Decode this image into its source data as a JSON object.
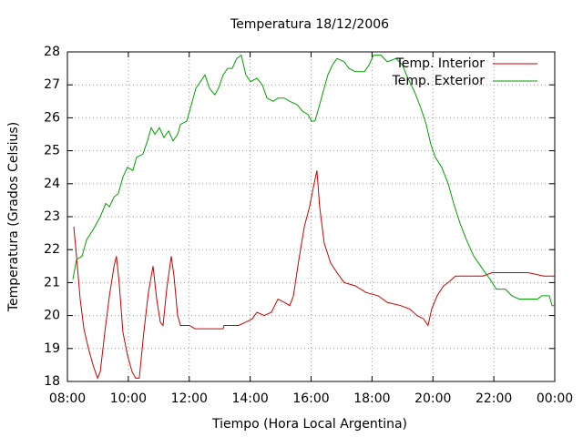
{
  "chart_data": {
    "type": "line",
    "title": "Temperatura 18/12/2006",
    "x_label": "Tiempo (Hora Local Argentina)",
    "y_label": "Temperatura (Grados Celsius)",
    "xlim": [
      8,
      24
    ],
    "xticks": [
      {
        "value": 8,
        "label": "08:00"
      },
      {
        "value": 10,
        "label": "10:00"
      },
      {
        "value": 12,
        "label": "12:00"
      },
      {
        "value": 14,
        "label": "14:00"
      },
      {
        "value": 16,
        "label": "16:00"
      },
      {
        "value": 18,
        "label": "18:00"
      },
      {
        "value": 20,
        "label": "20:00"
      },
      {
        "value": 22,
        "label": "22:00"
      },
      {
        "value": 24,
        "label": "00:00"
      }
    ],
    "ylim": [
      18,
      28
    ],
    "yticks": [
      18,
      19,
      20,
      21,
      22,
      23,
      24,
      25,
      26,
      27,
      28
    ],
    "grid": true,
    "legend": "top-right",
    "series": [
      {
        "name": "Temp. Interior",
        "color": "#cc0000",
        "x": [
          8.21,
          8.3,
          8.42,
          8.54,
          8.69,
          8.84,
          8.99,
          9.08,
          9.23,
          9.38,
          9.53,
          9.61,
          9.7,
          9.82,
          9.97,
          10.12,
          10.24,
          10.36,
          10.51,
          10.66,
          10.81,
          10.93,
          11.05,
          11.14,
          11.26,
          11.41,
          11.5,
          11.62,
          11.71,
          12.01,
          12.19,
          13.11,
          13.14,
          13.62,
          13.86,
          14.07,
          14.22,
          14.46,
          14.7,
          14.91,
          15.12,
          15.3,
          15.42,
          15.6,
          15.78,
          15.95,
          16.1,
          16.19,
          16.28,
          16.43,
          16.64,
          16.85,
          17.09,
          17.45,
          17.81,
          18.2,
          18.5,
          18.94,
          19.24,
          19.48,
          19.69,
          19.84,
          19.96,
          20.14,
          20.35,
          20.5,
          20.74,
          21.64,
          21.94,
          23.13,
          23.64,
          24.0
        ],
        "values": [
          22.7,
          21.8,
          20.5,
          19.6,
          19.0,
          18.5,
          18.1,
          18.3,
          19.5,
          20.6,
          21.5,
          21.8,
          21.0,
          19.5,
          18.8,
          18.3,
          18.1,
          18.1,
          19.5,
          20.7,
          21.5,
          20.5,
          19.8,
          19.7,
          20.8,
          21.8,
          21.2,
          20.0,
          19.7,
          19.7,
          19.6,
          19.6,
          19.7,
          19.7,
          19.8,
          19.9,
          20.1,
          20.0,
          20.1,
          20.5,
          20.4,
          20.3,
          20.6,
          21.7,
          22.7,
          23.3,
          24.0,
          24.4,
          23.3,
          22.2,
          21.6,
          21.3,
          21.0,
          20.9,
          20.7,
          20.6,
          20.4,
          20.3,
          20.2,
          20.0,
          19.9,
          19.7,
          20.2,
          20.6,
          20.9,
          21.0,
          21.2,
          21.2,
          21.3,
          21.3,
          21.2,
          21.2
        ]
      },
      {
        "name": "Temp. Exterior",
        "color": "#00a000",
        "x": [
          8.18,
          8.3,
          8.48,
          8.63,
          8.84,
          9.08,
          9.26,
          9.38,
          9.53,
          9.67,
          9.82,
          9.97,
          10.15,
          10.27,
          10.48,
          10.63,
          10.75,
          10.87,
          11.02,
          11.17,
          11.32,
          11.47,
          11.62,
          11.71,
          11.92,
          12.07,
          12.22,
          12.37,
          12.52,
          12.66,
          12.84,
          12.96,
          13.11,
          13.26,
          13.41,
          13.56,
          13.71,
          13.86,
          14.01,
          14.22,
          14.4,
          14.55,
          14.76,
          14.91,
          15.12,
          15.3,
          15.54,
          15.72,
          15.9,
          16.01,
          16.13,
          16.25,
          16.4,
          16.55,
          16.7,
          16.85,
          17.09,
          17.24,
          17.45,
          17.75,
          17.9,
          18.05,
          18.29,
          18.5,
          18.79,
          19.0,
          19.18,
          19.39,
          19.6,
          19.78,
          19.93,
          20.08,
          20.29,
          20.5,
          20.68,
          20.89,
          21.1,
          21.34,
          21.64,
          21.88,
          22.08,
          22.38,
          22.59,
          22.83,
          23.43,
          23.58,
          23.82,
          23.91,
          24.0
        ],
        "values": [
          21.1,
          21.7,
          21.8,
          22.3,
          22.6,
          23.0,
          23.4,
          23.3,
          23.6,
          23.7,
          24.2,
          24.5,
          24.4,
          24.8,
          24.9,
          25.3,
          25.7,
          25.5,
          25.7,
          25.4,
          25.6,
          25.3,
          25.5,
          25.8,
          25.9,
          26.4,
          26.9,
          27.1,
          27.3,
          26.9,
          26.7,
          26.9,
          27.3,
          27.5,
          27.5,
          27.8,
          27.9,
          27.3,
          27.1,
          27.2,
          27.0,
          26.6,
          26.5,
          26.6,
          26.6,
          26.5,
          26.4,
          26.2,
          26.1,
          25.9,
          25.9,
          26.3,
          26.8,
          27.3,
          27.6,
          27.8,
          27.7,
          27.5,
          27.4,
          27.4,
          27.6,
          27.9,
          27.9,
          27.7,
          27.8,
          27.6,
          27.2,
          26.8,
          26.3,
          25.8,
          25.2,
          24.8,
          24.5,
          24.0,
          23.4,
          22.8,
          22.3,
          21.8,
          21.4,
          21.1,
          20.8,
          20.8,
          20.6,
          20.5,
          20.5,
          20.6,
          20.6,
          20.3,
          20.3
        ]
      }
    ]
  }
}
